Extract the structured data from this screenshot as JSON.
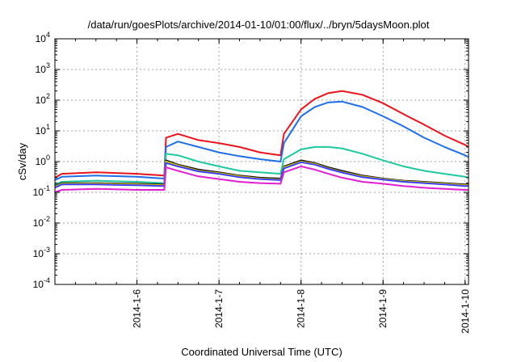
{
  "chart_data": {
    "type": "line",
    "title": "/data/run/goesPlots/archive/2014-01-10/01:00/flux/../bryn/5daysMoon.plot",
    "xlabel": "Coordinated Universal Time (UTC)",
    "ylabel": "cSv/day",
    "scale_y": "log",
    "ylim": [
      0.0001,
      10000
    ],
    "xlim": [
      "2014-01-05T00:00",
      "2014-01-10T01:00"
    ],
    "grid": true,
    "x_ticks": [
      "2014-01-06",
      "2014-01-07",
      "2014-01-08",
      "2014-01-09",
      "2014-01-10"
    ],
    "x_tick_labels": [
      "2014-1-6",
      "2014-1-7",
      "2014-1-8",
      "2014-1-9",
      "2014-1-10"
    ],
    "y_tick_labels": [
      {
        "base": "10",
        "exp": "4"
      },
      {
        "base": "10",
        "exp": "3"
      },
      {
        "base": "10",
        "exp": "2"
      },
      {
        "base": "10",
        "exp": "1"
      },
      {
        "base": "10",
        "exp": "0"
      },
      {
        "base": "10",
        "exp": "-1"
      },
      {
        "base": "10",
        "exp": "-2"
      },
      {
        "base": "10",
        "exp": "-3"
      },
      {
        "base": "10",
        "exp": "-4"
      }
    ],
    "x": [
      "2014-01-05T00:00",
      "2014-01-05T02:00",
      "2014-01-05T12:00",
      "2014-01-06T00:00",
      "2014-01-06T08:00",
      "2014-01-06T08:30",
      "2014-01-06T12:00",
      "2014-01-06T18:00",
      "2014-01-07T00:00",
      "2014-01-07T06:00",
      "2014-01-07T12:00",
      "2014-01-07T18:00",
      "2014-01-07T19:00",
      "2014-01-08T00:00",
      "2014-01-08T04:00",
      "2014-01-08T08:00",
      "2014-01-08T12:00",
      "2014-01-08T18:00",
      "2014-01-09T00:00",
      "2014-01-09T06:00",
      "2014-01-09T12:00",
      "2014-01-09T18:00",
      "2014-01-10T00:00",
      "2014-01-10T01:00"
    ],
    "series": [
      {
        "color": "#e8141c",
        "values": [
          0.3,
          0.4,
          0.45,
          0.4,
          0.35,
          6,
          8,
          5,
          4,
          3,
          2,
          1.6,
          8,
          50,
          110,
          170,
          200,
          150,
          80,
          35,
          16,
          7,
          3.5,
          3
        ]
      },
      {
        "color": "#1e6ee8",
        "values": [
          0.25,
          0.32,
          0.35,
          0.32,
          0.28,
          3,
          4.5,
          3,
          2,
          1.5,
          1.2,
          1,
          4,
          30,
          60,
          85,
          90,
          60,
          30,
          14,
          6,
          3,
          1.6,
          1.4
        ]
      },
      {
        "color": "#1ec8a0",
        "values": [
          0.18,
          0.22,
          0.24,
          0.22,
          0.2,
          1.8,
          1.6,
          1,
          0.7,
          0.5,
          0.45,
          0.4,
          1.2,
          2.5,
          3,
          3,
          2.7,
          1.8,
          1.1,
          0.7,
          0.5,
          0.4,
          0.32,
          0.3
        ]
      },
      {
        "color": "#111111",
        "values": [
          0.16,
          0.2,
          0.2,
          0.19,
          0.18,
          1.1,
          0.8,
          0.55,
          0.45,
          0.35,
          0.3,
          0.28,
          0.7,
          1.1,
          0.9,
          0.65,
          0.5,
          0.35,
          0.28,
          0.24,
          0.22,
          0.2,
          0.18,
          0.18
        ]
      },
      {
        "color": "#e0d400",
        "values": [
          0.15,
          0.19,
          0.19,
          0.18,
          0.17,
          1,
          0.75,
          0.5,
          0.42,
          0.33,
          0.28,
          0.26,
          0.65,
          1,
          0.85,
          0.6,
          0.46,
          0.33,
          0.27,
          0.23,
          0.21,
          0.19,
          0.17,
          0.17
        ]
      },
      {
        "color": "#3c3cff",
        "values": [
          0.14,
          0.18,
          0.18,
          0.17,
          0.16,
          0.9,
          0.7,
          0.48,
          0.4,
          0.31,
          0.27,
          0.25,
          0.6,
          0.95,
          0.8,
          0.58,
          0.44,
          0.31,
          0.26,
          0.22,
          0.2,
          0.18,
          0.16,
          0.16
        ]
      },
      {
        "color": "#e020d0",
        "values": [
          0.1,
          0.12,
          0.13,
          0.12,
          0.12,
          0.65,
          0.5,
          0.33,
          0.27,
          0.22,
          0.2,
          0.19,
          0.45,
          0.7,
          0.55,
          0.4,
          0.3,
          0.22,
          0.19,
          0.16,
          0.14,
          0.13,
          0.12,
          0.12
        ]
      }
    ]
  }
}
